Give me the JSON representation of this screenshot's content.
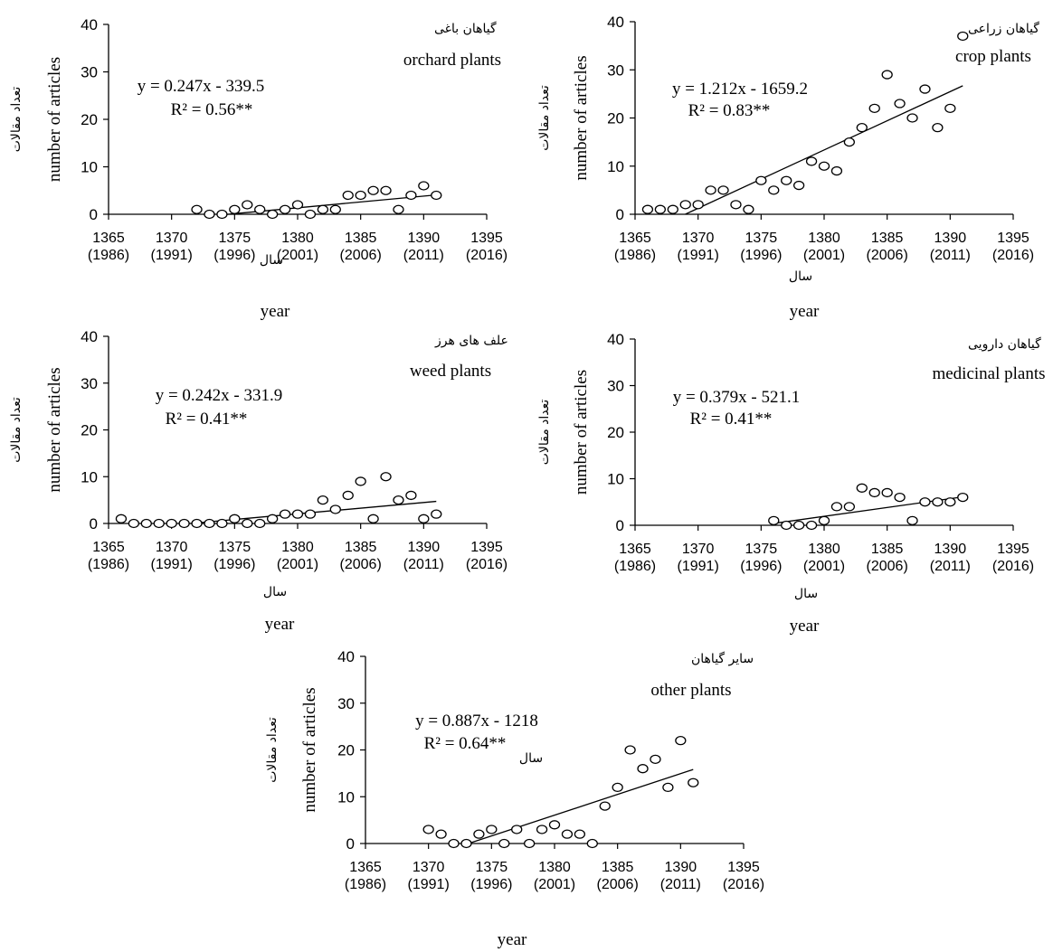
{
  "chart_data": [
    {
      "type": "scatter",
      "title_fa": "گیاهان باغی",
      "title": "orchard plants",
      "equation": "y = 0.247x - 339.5",
      "r2": "R² = 0.56**",
      "ylabel": "number of articles",
      "ylabel_fa": "تعداد مقالات",
      "xlabel": "year",
      "xlabel_fa": "سال",
      "xlim": [
        1365,
        1395
      ],
      "ylim": [
        0,
        40
      ],
      "xticks": [
        {
          "v": "1365",
          "g": "(1986)"
        },
        {
          "v": "1370",
          "g": "(1991)"
        },
        {
          "v": "1375",
          "g": "(1996)"
        },
        {
          "v": "1380",
          "g": "(2001)"
        },
        {
          "v": "1385",
          "g": "(2006)"
        },
        {
          "v": "1390",
          "g": "(2011)"
        },
        {
          "v": "1395",
          "g": "(2016)"
        }
      ],
      "yticks": [
        "0",
        "10",
        "20",
        "30",
        "40"
      ],
      "trend": {
        "slope": 0.247,
        "intercept": -339.5,
        "x": [
          1374,
          1391
        ]
      },
      "points": [
        [
          1372,
          1
        ],
        [
          1373,
          0
        ],
        [
          1374,
          0
        ],
        [
          1375,
          1
        ],
        [
          1376,
          2
        ],
        [
          1377,
          1
        ],
        [
          1378,
          0
        ],
        [
          1379,
          1
        ],
        [
          1380,
          2
        ],
        [
          1381,
          0
        ],
        [
          1382,
          1
        ],
        [
          1383,
          1
        ],
        [
          1384,
          4
        ],
        [
          1385,
          4
        ],
        [
          1386,
          5
        ],
        [
          1387,
          5
        ],
        [
          1388,
          1
        ],
        [
          1389,
          4
        ],
        [
          1390,
          6
        ],
        [
          1391,
          4
        ]
      ]
    },
    {
      "type": "scatter",
      "title_fa": "گیاهان زراعی",
      "title": "crop plants",
      "equation": "y = 1.212x - 1659.2",
      "r2": "R² = 0.83**",
      "ylabel": "number of articles",
      "ylabel_fa": "تعداد مقالات",
      "xlabel": "year",
      "xlabel_fa": "سال",
      "xlim": [
        1365,
        1395
      ],
      "ylim": [
        0,
        40
      ],
      "xticks": [
        {
          "v": "1365",
          "g": "(1986)"
        },
        {
          "v": "1370",
          "g": "(1991)"
        },
        {
          "v": "1375",
          "g": "(1996)"
        },
        {
          "v": "1380",
          "g": "(2001)"
        },
        {
          "v": "1385",
          "g": "(2006)"
        },
        {
          "v": "1390",
          "g": "(2011)"
        },
        {
          "v": "1395",
          "g": "(2016)"
        }
      ],
      "yticks": [
        "0",
        "10",
        "20",
        "30",
        "40"
      ],
      "trend": {
        "slope": 1.212,
        "intercept": -1659.2,
        "x": [
          1369,
          1391
        ]
      },
      "points": [
        [
          1366,
          1
        ],
        [
          1367,
          1
        ],
        [
          1368,
          1
        ],
        [
          1369,
          2
        ],
        [
          1370,
          2
        ],
        [
          1371,
          5
        ],
        [
          1372,
          5
        ],
        [
          1373,
          2
        ],
        [
          1374,
          1
        ],
        [
          1375,
          7
        ],
        [
          1376,
          5
        ],
        [
          1377,
          7
        ],
        [
          1378,
          6
        ],
        [
          1379,
          11
        ],
        [
          1380,
          10
        ],
        [
          1381,
          9
        ],
        [
          1382,
          15
        ],
        [
          1383,
          18
        ],
        [
          1384,
          22
        ],
        [
          1385,
          29
        ],
        [
          1386,
          23
        ],
        [
          1387,
          20
        ],
        [
          1388,
          26
        ],
        [
          1389,
          18
        ],
        [
          1390,
          22
        ],
        [
          1391,
          37
        ]
      ]
    },
    {
      "type": "scatter",
      "title_fa": "علف های هرز",
      "title": "weed plants",
      "equation": "y = 0.242x - 331.9",
      "r2": "R² = 0.41**",
      "ylabel": "number of articles",
      "ylabel_fa": "تعداد مقالات",
      "xlabel": "year",
      "xlabel_fa": "سال",
      "xlim": [
        1365,
        1395
      ],
      "ylim": [
        0,
        40
      ],
      "xticks": [
        {
          "v": "1365",
          "g": "(1986)"
        },
        {
          "v": "1370",
          "g": "(1991)"
        },
        {
          "v": "1375",
          "g": "(1996)"
        },
        {
          "v": "1380",
          "g": "(2001)"
        },
        {
          "v": "1385",
          "g": "(2006)"
        },
        {
          "v": "1390",
          "g": "(2011)"
        },
        {
          "v": "1395",
          "g": "(2016)"
        }
      ],
      "yticks": [
        "0",
        "10",
        "20",
        "30",
        "40"
      ],
      "trend": {
        "slope": 0.242,
        "intercept": -331.9,
        "x": [
          1371.5,
          1391
        ]
      },
      "points": [
        [
          1366,
          1
        ],
        [
          1367,
          0
        ],
        [
          1368,
          0
        ],
        [
          1369,
          0
        ],
        [
          1370,
          0
        ],
        [
          1371,
          0
        ],
        [
          1372,
          0
        ],
        [
          1373,
          0
        ],
        [
          1374,
          0
        ],
        [
          1375,
          1
        ],
        [
          1376,
          0
        ],
        [
          1377,
          0
        ],
        [
          1378,
          1
        ],
        [
          1379,
          2
        ],
        [
          1380,
          2
        ],
        [
          1381,
          2
        ],
        [
          1382,
          5
        ],
        [
          1383,
          3
        ],
        [
          1384,
          6
        ],
        [
          1385,
          9
        ],
        [
          1386,
          1
        ],
        [
          1387,
          10
        ],
        [
          1388,
          5
        ],
        [
          1389,
          6
        ],
        [
          1390,
          1
        ],
        [
          1391,
          2
        ]
      ]
    },
    {
      "type": "scatter",
      "title_fa": "گیاهان دارویی",
      "title": "medicinal plants",
      "equation": "y = 0.379x - 521.1",
      "r2": "R² = 0.41**",
      "ylabel": "number of articles",
      "ylabel_fa": "تعداد مقالات",
      "xlabel": "year",
      "xlabel_fa": "سال",
      "xlim": [
        1365,
        1395
      ],
      "ylim": [
        0,
        40
      ],
      "xticks": [
        {
          "v": "1365",
          "g": "(1986)"
        },
        {
          "v": "1370",
          "g": "(1991)"
        },
        {
          "v": "1375",
          "g": "(1996)"
        },
        {
          "v": "1380",
          "g": "(2001)"
        },
        {
          "v": "1385",
          "g": "(2006)"
        },
        {
          "v": "1390",
          "g": "(2011)"
        },
        {
          "v": "1395",
          "g": "(2016)"
        }
      ],
      "yticks": [
        "0",
        "10",
        "20",
        "30",
        "40"
      ],
      "trend": {
        "slope": 0.379,
        "intercept": -521.1,
        "x": [
          1376,
          1391
        ]
      },
      "points": [
        [
          1376,
          1
        ],
        [
          1377,
          0
        ],
        [
          1378,
          0
        ],
        [
          1379,
          0
        ],
        [
          1380,
          1
        ],
        [
          1381,
          4
        ],
        [
          1382,
          4
        ],
        [
          1383,
          8
        ],
        [
          1384,
          7
        ],
        [
          1385,
          7
        ],
        [
          1386,
          6
        ],
        [
          1387,
          1
        ],
        [
          1388,
          5
        ],
        [
          1389,
          5
        ],
        [
          1390,
          5
        ],
        [
          1391,
          6
        ]
      ]
    },
    {
      "type": "scatter",
      "title_fa": "سایر گیاهان",
      "title": "other plants",
      "equation": "y = 0.887x - 1218",
      "r2": "R² = 0.64**",
      "ylabel": "number of articles",
      "ylabel_fa": "تعداد مقالات",
      "xlabel": "year",
      "xlabel_fa": "سال",
      "xlim": [
        1365,
        1395
      ],
      "ylim": [
        0,
        40
      ],
      "xticks": [
        {
          "v": "1365",
          "g": "(1986)"
        },
        {
          "v": "1370",
          "g": "(1991)"
        },
        {
          "v": "1375",
          "g": "(1996)"
        },
        {
          "v": "1380",
          "g": "(2001)"
        },
        {
          "v": "1385",
          "g": "(2006)"
        },
        {
          "v": "1390",
          "g": "(2011)"
        },
        {
          "v": "1395",
          "g": "(2016)"
        }
      ],
      "yticks": [
        "0",
        "10",
        "20",
        "30",
        "40"
      ],
      "trend": {
        "slope": 0.887,
        "intercept": -1218,
        "x": [
          1373.2,
          1391
        ]
      },
      "points": [
        [
          1370,
          3
        ],
        [
          1371,
          2
        ],
        [
          1372,
          0
        ],
        [
          1373,
          0
        ],
        [
          1374,
          2
        ],
        [
          1375,
          3
        ],
        [
          1376,
          0
        ],
        [
          1377,
          3
        ],
        [
          1378,
          0
        ],
        [
          1379,
          3
        ],
        [
          1380,
          4
        ],
        [
          1381,
          2
        ],
        [
          1382,
          2
        ],
        [
          1383,
          0
        ],
        [
          1384,
          8
        ],
        [
          1385,
          12
        ],
        [
          1386,
          20
        ],
        [
          1387,
          16
        ],
        [
          1388,
          18
        ],
        [
          1389,
          12
        ],
        [
          1390,
          22
        ],
        [
          1391,
          13
        ]
      ]
    }
  ]
}
